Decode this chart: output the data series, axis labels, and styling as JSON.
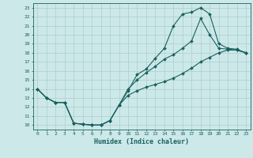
{
  "background_color": "#cde8e8",
  "grid_color": "#aacece",
  "line_color": "#1a6060",
  "xlabel": "Humidex (Indice chaleur)",
  "xlim": [
    -0.5,
    23.5
  ],
  "ylim": [
    9.5,
    23.5
  ],
  "xticks": [
    0,
    1,
    2,
    3,
    4,
    5,
    6,
    7,
    8,
    9,
    10,
    11,
    12,
    13,
    14,
    15,
    16,
    17,
    18,
    19,
    20,
    21,
    22,
    23
  ],
  "yticks": [
    10,
    11,
    12,
    13,
    14,
    15,
    16,
    17,
    18,
    19,
    20,
    21,
    22,
    23
  ],
  "curve1_x": [
    0,
    1,
    2,
    3,
    4,
    5,
    6,
    7,
    8,
    9,
    10,
    11,
    12,
    13,
    14,
    15,
    16,
    17,
    18,
    19,
    20,
    21,
    22,
    23
  ],
  "curve1_y": [
    14,
    13,
    12.5,
    12.5,
    10.2,
    10.1,
    10.0,
    10.0,
    10.5,
    12.2,
    13.8,
    15.6,
    16.2,
    17.4,
    18.5,
    21.0,
    22.3,
    22.5,
    23.0,
    22.3,
    19.0,
    18.5,
    18.4,
    18.0
  ],
  "curve2_x": [
    0,
    1,
    2,
    3,
    4,
    5,
    6,
    7,
    8,
    9,
    10,
    11,
    12,
    13,
    14,
    15,
    16,
    17,
    18,
    19,
    20,
    21,
    22,
    23
  ],
  "curve2_y": [
    14,
    13,
    12.5,
    12.5,
    10.2,
    10.1,
    10.0,
    10.0,
    10.5,
    12.2,
    14.0,
    15.0,
    15.8,
    16.5,
    17.3,
    17.8,
    18.5,
    19.3,
    21.8,
    20.0,
    18.5,
    18.4,
    18.3,
    18.0
  ],
  "curve3_x": [
    0,
    1,
    2,
    3,
    4,
    5,
    6,
    7,
    8,
    9,
    10,
    11,
    12,
    13,
    14,
    15,
    16,
    17,
    18,
    19,
    20,
    21,
    22,
    23
  ],
  "curve3_y": [
    14,
    13,
    12.5,
    12.5,
    10.2,
    10.1,
    10.0,
    10.0,
    10.5,
    12.2,
    13.3,
    13.8,
    14.2,
    14.5,
    14.8,
    15.2,
    15.7,
    16.3,
    17.0,
    17.5,
    18.0,
    18.3,
    18.3,
    18.0
  ]
}
